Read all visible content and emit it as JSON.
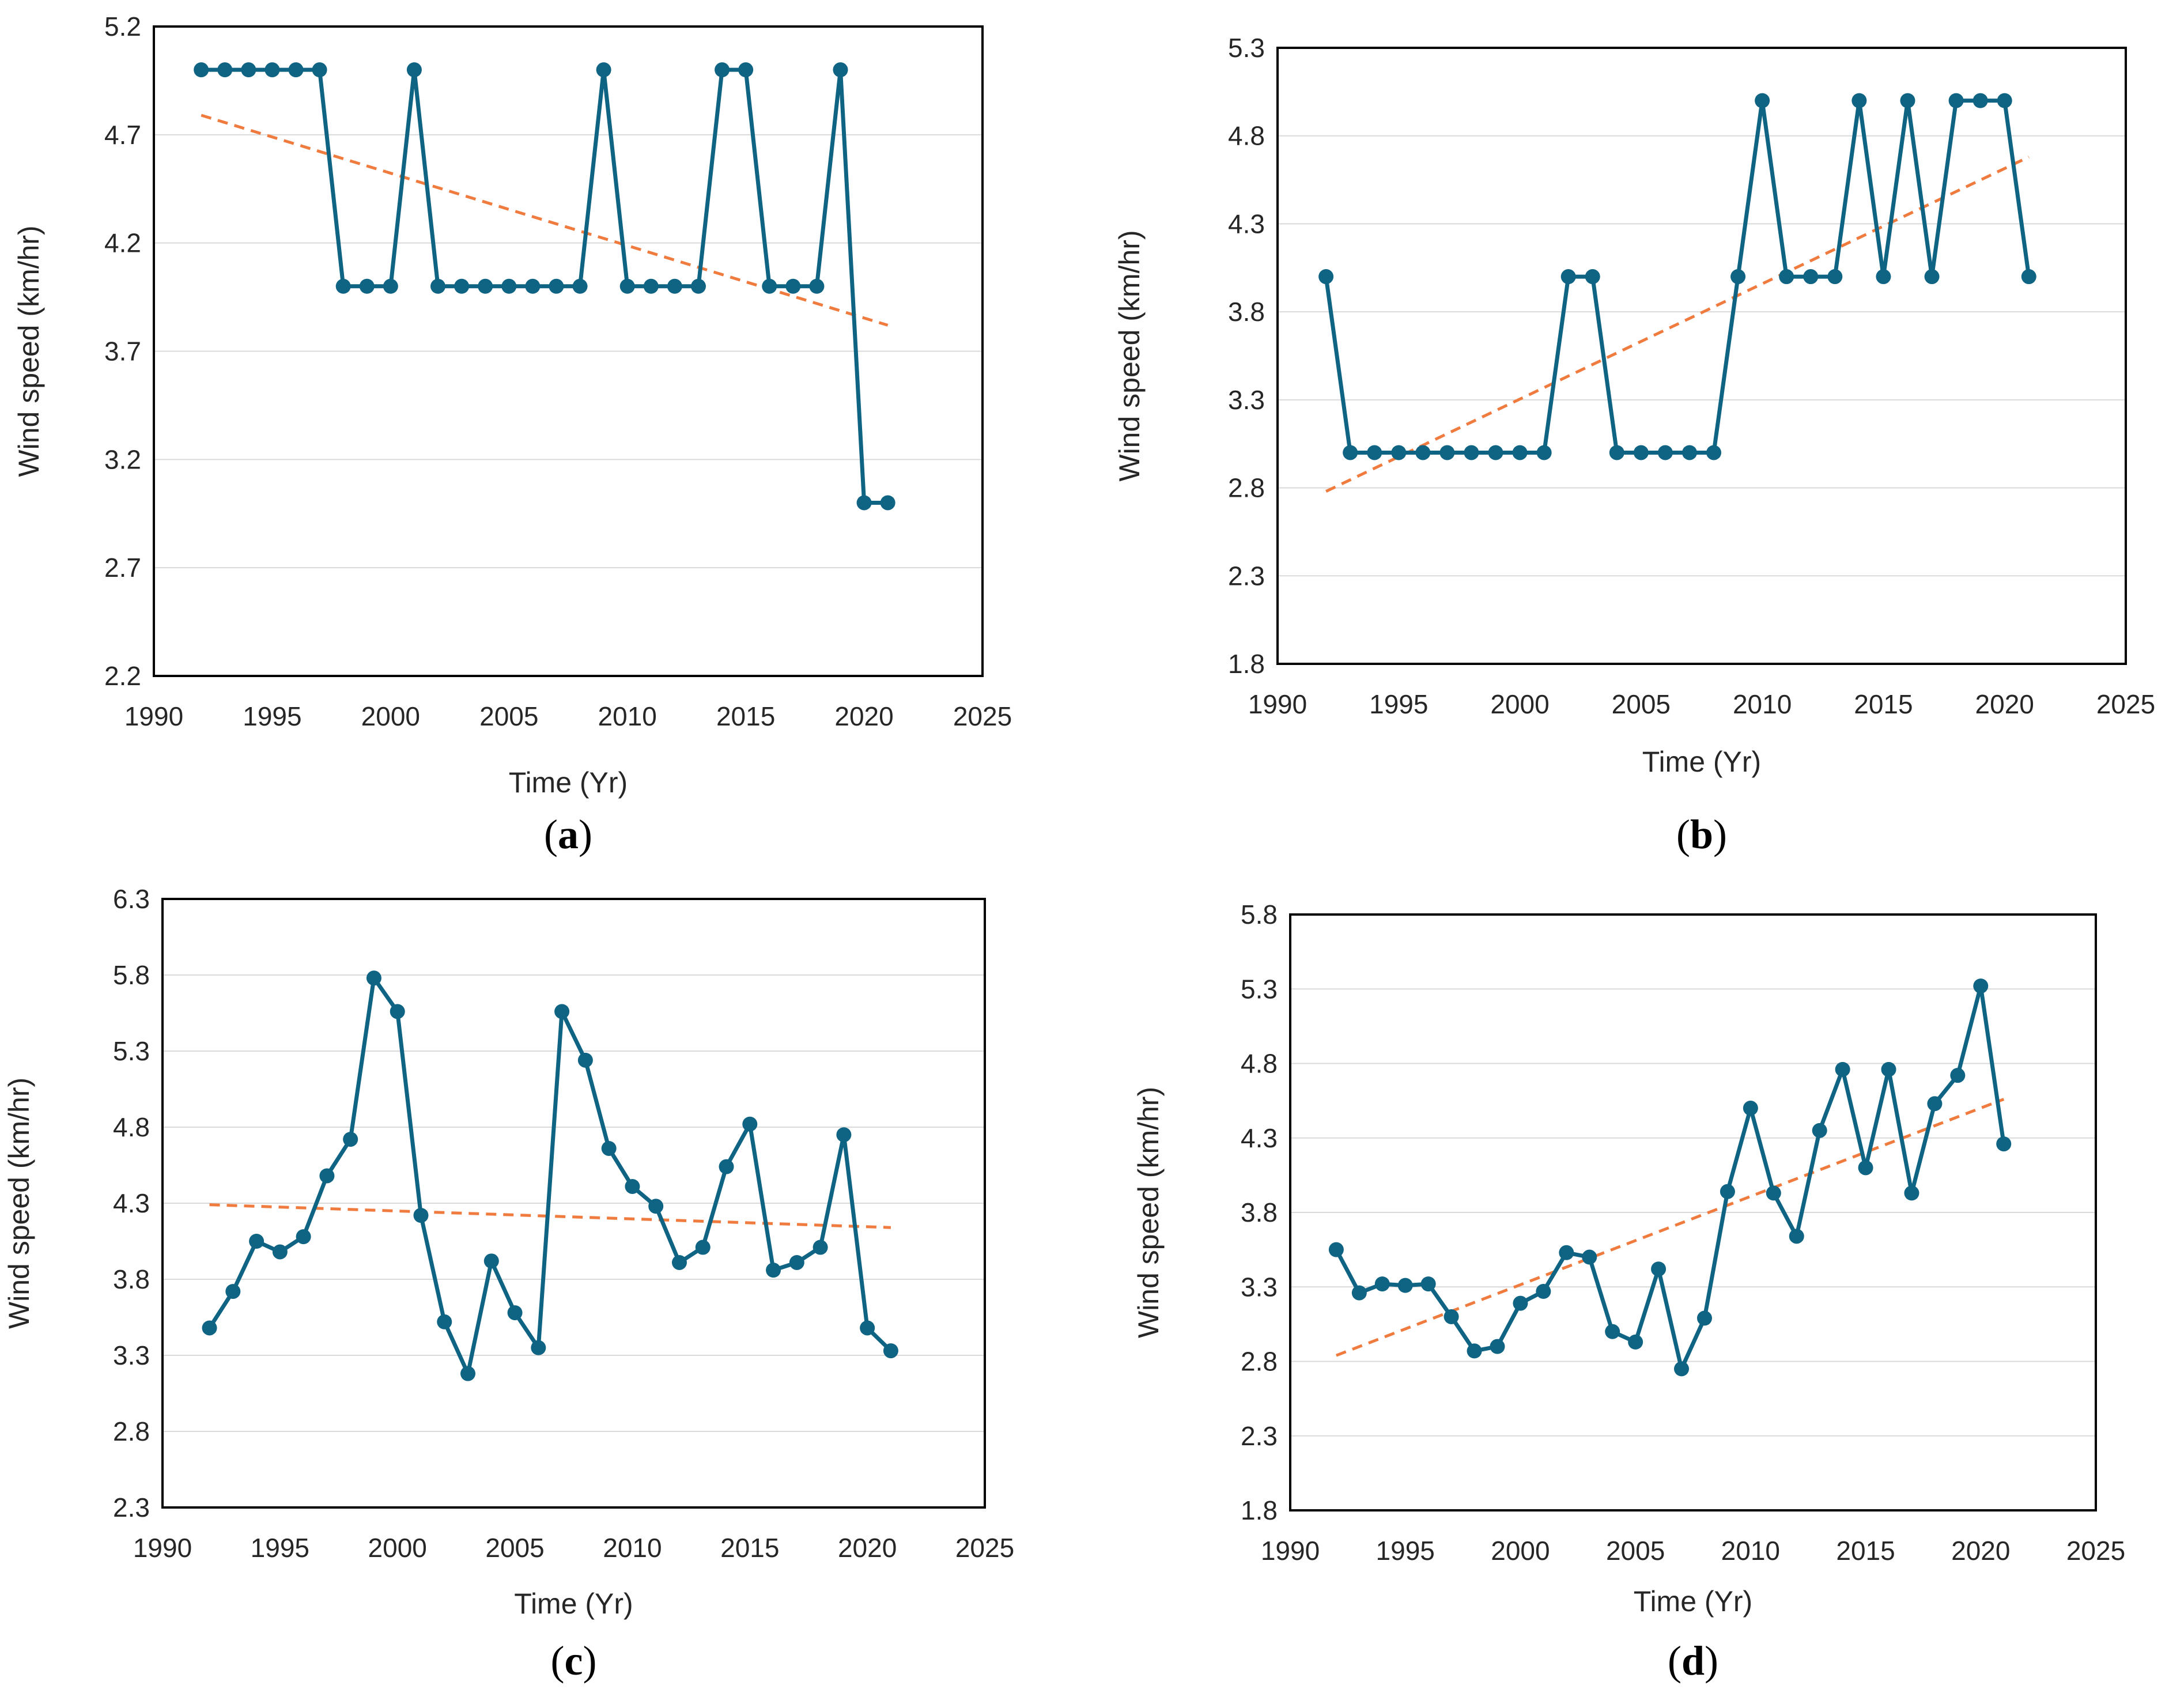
{
  "chart_data": [
    {
      "type": "line",
      "panel_label": "a",
      "xlabel": "Time (Yr)",
      "ylabel": "Wind speed (km/hr)",
      "xlim": [
        1990,
        2025
      ],
      "xticks": [
        1990,
        1995,
        2000,
        2005,
        2010,
        2015,
        2020,
        2025
      ],
      "ylim": [
        2.2,
        5.2
      ],
      "yticks": [
        "2.2",
        "2.7",
        "3.2",
        "3.7",
        "4.2",
        "4.7",
        "5.2"
      ],
      "grid": true,
      "series": [
        {
          "x": [
            1992,
            1993,
            1994,
            1995,
            1996,
            1997,
            1998,
            1999,
            2000,
            2001,
            2002,
            2003,
            2004,
            2005,
            2006,
            2007,
            2008,
            2009,
            2010,
            2011,
            2012,
            2013,
            2014,
            2015,
            2016,
            2017,
            2018,
            2019,
            2020,
            2021
          ],
          "values": [
            5,
            5,
            5,
            5,
            5,
            5,
            4,
            4,
            4,
            5,
            4,
            4,
            4,
            4,
            4,
            4,
            4,
            5,
            4,
            4,
            4,
            4,
            5,
            5,
            4,
            4,
            4,
            5,
            3,
            3
          ],
          "color": "#0f6383"
        }
      ],
      "trendline": {
        "x": [
          1992,
          2021
        ],
        "values": [
          4.79,
          3.82
        ],
        "color": "#f07b3f",
        "style": "dashed"
      }
    },
    {
      "type": "line",
      "panel_label": "b",
      "xlabel": "Time (Yr)",
      "ylabel": "Wind speed  (km/hr)",
      "xlim": [
        1990,
        2025
      ],
      "xticks": [
        1990,
        1995,
        2000,
        2005,
        2010,
        2015,
        2020,
        2025
      ],
      "ylim": [
        1.8,
        5.3
      ],
      "yticks": [
        "1.8",
        "2.3",
        "2.8",
        "3.3",
        "3.8",
        "4.3",
        "4.8",
        "5.3"
      ],
      "grid": true,
      "series": [
        {
          "x": [
            1992,
            1993,
            1994,
            1995,
            1996,
            1997,
            1998,
            1999,
            2000,
            2001,
            2002,
            2003,
            2004,
            2005,
            2006,
            2007,
            2008,
            2009,
            2010,
            2011,
            2012,
            2013,
            2014,
            2015,
            2016,
            2017,
            2018,
            2019,
            2020,
            2021
          ],
          "values": [
            4,
            3,
            3,
            3,
            3,
            3,
            3,
            3,
            3,
            3,
            4,
            4,
            3,
            3,
            3,
            3,
            3,
            4,
            5,
            4,
            4,
            4,
            5,
            4,
            5,
            4,
            5,
            5,
            5,
            4
          ],
          "color": "#0f6383"
        }
      ],
      "trendline": {
        "x": [
          1992,
          2021
        ],
        "values": [
          2.78,
          4.68
        ],
        "color": "#f07b3f",
        "style": "dashed"
      }
    },
    {
      "type": "line",
      "panel_label": "c",
      "xlabel": "Time (Yr)",
      "ylabel": "Wind speed (km/hr)",
      "xlim": [
        1990,
        2025
      ],
      "xticks": [
        1990,
        1995,
        2000,
        2005,
        2010,
        2015,
        2020,
        2025
      ],
      "ylim": [
        2.3,
        6.3
      ],
      "yticks": [
        "2.3",
        "2.8",
        "3.3",
        "3.8",
        "4.3",
        "4.8",
        "5.3",
        "5.8",
        "6.3"
      ],
      "grid": true,
      "series": [
        {
          "x": [
            1992,
            1993,
            1994,
            1995,
            1996,
            1997,
            1998,
            1999,
            2000,
            2001,
            2002,
            2003,
            2004,
            2005,
            2006,
            2007,
            2008,
            2009,
            2010,
            2011,
            2012,
            2013,
            2014,
            2015,
            2016,
            2017,
            2018,
            2019,
            2020,
            2021
          ],
          "values": [
            3.48,
            3.72,
            4.05,
            3.98,
            4.08,
            4.48,
            4.72,
            5.78,
            5.56,
            4.22,
            3.52,
            3.18,
            3.92,
            3.58,
            3.35,
            5.56,
            5.24,
            4.66,
            4.41,
            4.28,
            3.91,
            4.01,
            4.54,
            4.82,
            3.86,
            3.91,
            4.01,
            4.75,
            3.48,
            3.33
          ],
          "color": "#0f6383"
        }
      ],
      "trendline": {
        "x": [
          1992,
          2021
        ],
        "values": [
          4.29,
          4.14
        ],
        "color": "#f07b3f",
        "style": "dashed"
      }
    },
    {
      "type": "line",
      "panel_label": "d",
      "xlabel": "Time (Yr)",
      "ylabel": "Wind speed (km/hr)",
      "xlim": [
        1990,
        2025
      ],
      "xticks": [
        1990,
        1995,
        2000,
        2005,
        2010,
        2015,
        2020,
        2025
      ],
      "ylim": [
        1.8,
        5.8
      ],
      "yticks": [
        "1.8",
        "2.3",
        "2.8",
        "3.3",
        "3.8",
        "4.3",
        "4.8",
        "5.3",
        "5.8"
      ],
      "grid": true,
      "series": [
        {
          "x": [
            1992,
            1993,
            1994,
            1995,
            1996,
            1997,
            1998,
            1999,
            2000,
            2001,
            2002,
            2003,
            2004,
            2005,
            2006,
            2007,
            2008,
            2009,
            2010,
            2011,
            2012,
            2013,
            2014,
            2015,
            2016,
            2017,
            2018,
            2019,
            2020,
            2021
          ],
          "values": [
            3.55,
            3.26,
            3.32,
            3.31,
            3.32,
            3.1,
            2.87,
            2.9,
            3.19,
            3.27,
            3.53,
            3.5,
            3.0,
            2.93,
            3.42,
            2.75,
            3.09,
            3.94,
            4.5,
            3.93,
            3.64,
            4.35,
            4.76,
            4.1,
            4.76,
            3.93,
            4.53,
            4.72,
            5.32,
            4.26
          ],
          "color": "#0f6383"
        }
      ],
      "trendline": {
        "x": [
          1992,
          2021
        ],
        "values": [
          2.84,
          4.56
        ],
        "color": "#f07b3f",
        "style": "dashed"
      }
    }
  ]
}
